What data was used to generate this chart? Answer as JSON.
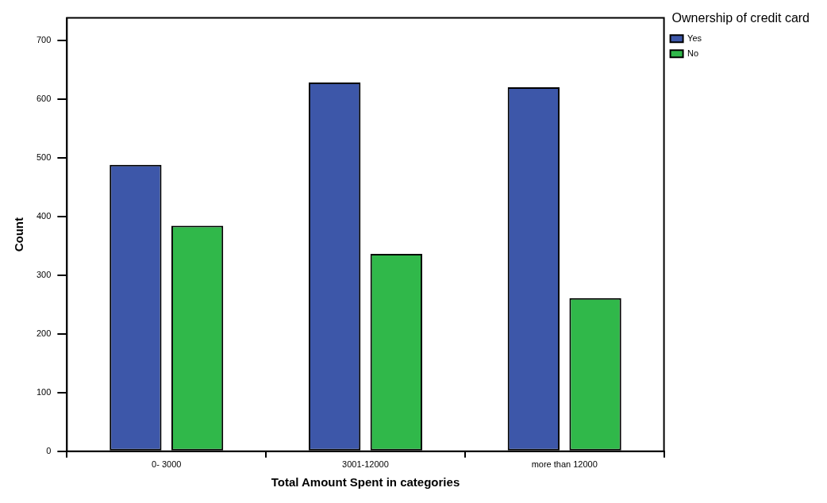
{
  "chart_data": {
    "type": "bar",
    "xlabel": "Total Amount Spent in categories",
    "ylabel": "Count",
    "legend_title": "Ownership of credit card",
    "categories": [
      "0- 3000",
      "3001-12000",
      "more than 12000"
    ],
    "series": [
      {
        "name": "Yes",
        "color": "#3d57a9",
        "values": [
          488,
          628,
          620
        ]
      },
      {
        "name": "No",
        "color": "#30b84a",
        "values": [
          384,
          336,
          261
        ]
      }
    ],
    "ylim": [
      0,
      738
    ],
    "yticks": [
      0,
      100,
      200,
      300,
      400,
      500,
      600,
      700
    ],
    "grid": false,
    "legend": "top right"
  }
}
